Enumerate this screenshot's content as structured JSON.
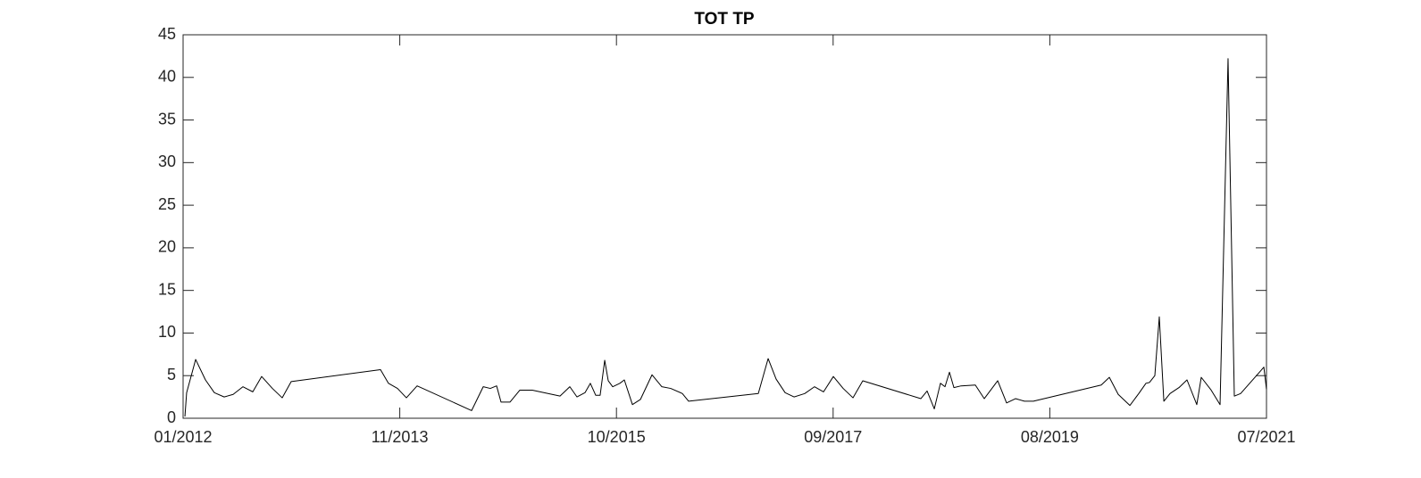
{
  "chart_data": {
    "type": "line",
    "title": "TOT TP",
    "color": "#000000",
    "x": [
      2012.016,
      2012.031,
      2012.11,
      2012.196,
      2012.274,
      2012.36,
      2012.439,
      2012.525,
      2012.611,
      2012.689,
      2012.783,
      2012.869,
      2012.948,
      2013.731,
      2013.801,
      2013.88,
      2013.958,
      2014.052,
      2014.53,
      2014.632,
      2014.694,
      2014.749,
      2014.788,
      2014.867,
      2014.953,
      2015.062,
      2015.305,
      2015.391,
      2015.454,
      2015.524,
      2015.571,
      2015.618,
      2015.657,
      2015.697,
      2015.728,
      2015.767,
      2015.83,
      2015.869,
      2015.94,
      2016.01,
      2016.112,
      2016.198,
      2016.276,
      2016.378,
      2016.433,
      2017.044,
      2017.13,
      2017.2,
      2017.279,
      2017.357,
      2017.451,
      2017.537,
      2017.616,
      2017.702,
      2017.788,
      2017.874,
      2017.96,
      2018.469,
      2018.524,
      2018.587,
      2018.641,
      2018.681,
      2018.72,
      2018.759,
      2018.822,
      2018.947,
      2019.025,
      2019.143,
      2019.221,
      2019.299,
      2019.378,
      2019.456,
      2020.051,
      2020.122,
      2020.2,
      2020.302,
      2020.38,
      2020.443,
      2020.474,
      2020.521,
      2020.56,
      2020.6,
      2020.654,
      2020.733,
      2020.803,
      2020.889,
      2020.928,
      2021.015,
      2021.093,
      2021.163,
      2021.218,
      2021.273,
      2021.438,
      2021.477,
      2021.5
    ],
    "values": [
      0.2,
      3,
      6.9,
      4.5,
      3,
      2.5,
      2.8,
      3.7,
      3.1,
      4.9,
      3.5,
      2.4,
      4.3,
      5.7,
      4.1,
      3.5,
      2.4,
      3.8,
      0.9,
      3.7,
      3.5,
      3.8,
      1.9,
      1.9,
      3.3,
      3.3,
      2.6,
      3.7,
      2.5,
      3,
      4.1,
      2.7,
      2.7,
      6.8,
      4.4,
      3.7,
      4.1,
      4.5,
      1.6,
      2.2,
      5.1,
      3.7,
      3.5,
      2.9,
      2,
      2.9,
      7,
      4.6,
      3,
      2.5,
      2.9,
      3.7,
      3.1,
      4.9,
      3.5,
      2.4,
      4.4,
      2.3,
      3.2,
      1.1,
      4.1,
      3.7,
      5.4,
      3.6,
      3.8,
      3.9,
      2.3,
      4.4,
      1.8,
      2.3,
      2,
      2,
      3.9,
      4.8,
      2.8,
      1.5,
      2.9,
      4.1,
      4.2,
      5,
      11.9,
      2,
      2.9,
      3.6,
      4.5,
      1.6,
      4.8,
      3.3,
      1.6,
      42.2,
      2.6,
      2.9,
      5.4,
      6,
      3.4
    ],
    "xlim": [
      2012.0,
      2021.5
    ],
    "xticks": [
      {
        "value": 2012.0,
        "label": "01/2012"
      },
      {
        "value": 2013.9,
        "label": "11/2013"
      },
      {
        "value": 2015.8,
        "label": "10/2015"
      },
      {
        "value": 2017.7,
        "label": "09/2017"
      },
      {
        "value": 2019.6,
        "label": "08/2019"
      },
      {
        "value": 2021.5,
        "label": "07/2021"
      }
    ],
    "ylim": [
      0,
      45
    ],
    "yticks": [
      0,
      5,
      10,
      15,
      20,
      25,
      30,
      35,
      40,
      45
    ]
  }
}
